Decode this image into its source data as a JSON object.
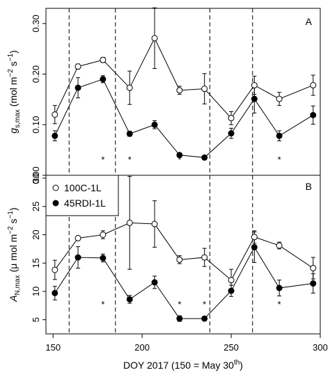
{
  "chart_data": [
    {
      "type": "line",
      "panel_label": "A",
      "ylabel_main": "g",
      "ylabel_sub": "s,max",
      "ylabel_unit": "(mol m",
      "ylabel_unit_sup1": "−2",
      "ylabel_unit_mid": " s",
      "ylabel_unit_sup2": "−1",
      "ylabel_unit_end": ")",
      "ylim": [
        0.0,
        0.33
      ],
      "yticks": [
        0.0,
        0.1,
        0.2,
        0.3
      ],
      "ytick_labels": [
        "0.00",
        "0.10",
        "0.20",
        "0.30"
      ],
      "x": [
        151,
        164,
        178,
        193,
        207,
        221,
        235,
        250,
        263,
        277,
        296
      ],
      "series": [
        {
          "name": "100C-1L",
          "marker": "open",
          "values": [
            0.12,
            0.215,
            0.228,
            0.173,
            0.271,
            0.168,
            0.171,
            0.113,
            0.178,
            0.151,
            0.178
          ],
          "errors": [
            0.018,
            0.005,
            0.005,
            0.033,
            0.06,
            0.008,
            0.03,
            0.013,
            0.018,
            0.013,
            0.02
          ]
        },
        {
          "name": "45RDI-1L",
          "marker": "filled",
          "values": [
            0.078,
            0.173,
            0.19,
            0.082,
            0.1,
            0.04,
            0.035,
            0.083,
            0.151,
            0.078,
            0.119
          ],
          "errors": [
            0.01,
            0.02,
            0.007,
            0.005,
            0.008,
            0.002,
            0.002,
            0.01,
            0.028,
            0.01,
            0.018
          ]
        }
      ],
      "asterisks_x": [
        178,
        193,
        221,
        235,
        277
      ],
      "asterisk_symbol": "*",
      "vlines": [
        159,
        185,
        238,
        262
      ]
    },
    {
      "type": "line",
      "panel_label": "B",
      "ylabel_main": "A",
      "ylabel_sub": "N,max",
      "ylabel_unit": "(μ mol m",
      "ylabel_unit_sup1": "−2",
      "ylabel_unit_mid": " s",
      "ylabel_unit_sup2": "−1",
      "ylabel_unit_end": ")",
      "ylim": [
        2.5,
        30.5
      ],
      "yticks": [
        5,
        10,
        15,
        20,
        25,
        30
      ],
      "ytick_labels": [
        "5",
        "10",
        "15",
        "20",
        "25",
        "30"
      ],
      "x": [
        151,
        164,
        178,
        193,
        207,
        221,
        235,
        250,
        263,
        277,
        296
      ],
      "series": [
        {
          "name": "100C-1L",
          "marker": "open",
          "values": [
            13.8,
            19.4,
            20.0,
            22.1,
            21.9,
            15.6,
            16.0,
            12.0,
            19.6,
            18.1,
            14.1
          ],
          "errors": [
            1.7,
            0.4,
            0.7,
            8.2,
            4.1,
            0.7,
            1.6,
            1.9,
            1.1,
            0.6,
            1.9
          ]
        },
        {
          "name": "45RDI-1L",
          "marker": "filled",
          "values": [
            9.7,
            16.0,
            15.9,
            8.6,
            11.6,
            5.2,
            5.2,
            10.1,
            17.8,
            10.6,
            11.4
          ],
          "errors": [
            1.2,
            1.9,
            0.7,
            0.7,
            1.1,
            0.5,
            0.3,
            1.0,
            2.7,
            1.4,
            1.7
          ]
        }
      ],
      "asterisks_x": [
        178,
        221,
        235,
        277
      ],
      "asterisk_symbol": "*",
      "vlines": [
        159,
        185,
        238,
        262
      ],
      "legend": [
        "100C-1L",
        "45RDI-1L"
      ],
      "legend_position": "top-left"
    }
  ],
  "x_axis": {
    "xlim": [
      146,
      300
    ],
    "ticks": [
      150,
      200,
      250,
      300
    ],
    "tick_labels": [
      "150",
      "200",
      "250",
      "300"
    ],
    "label_main": "DOY 2017 (150 = May 30",
    "label_sup": "th",
    "label_end": ")"
  }
}
